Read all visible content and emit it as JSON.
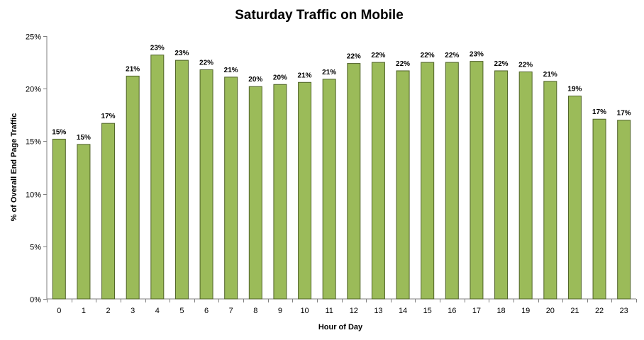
{
  "chart_data": {
    "type": "bar",
    "title": "Saturday Traffic on Mobile",
    "xlabel": "Hour of Day",
    "ylabel": "% of Overall End Page Traffic",
    "ylim": [
      0,
      25
    ],
    "yticks": [
      0,
      5,
      10,
      15,
      20,
      25
    ],
    "ytick_labels": [
      "0%",
      "5%",
      "10%",
      "15%",
      "20%",
      "25%"
    ],
    "categories": [
      "0",
      "1",
      "2",
      "3",
      "4",
      "5",
      "6",
      "7",
      "8",
      "9",
      "10",
      "11",
      "12",
      "13",
      "14",
      "15",
      "16",
      "17",
      "18",
      "19",
      "20",
      "21",
      "22",
      "23"
    ],
    "values": [
      15.2,
      14.7,
      16.7,
      21.2,
      23.2,
      22.7,
      21.8,
      21.1,
      20.2,
      20.4,
      20.6,
      20.9,
      22.4,
      22.5,
      21.7,
      22.5,
      22.5,
      22.6,
      21.7,
      21.6,
      20.7,
      19.3,
      17.1,
      17.0
    ],
    "data_labels": [
      "15%",
      "15%",
      "17%",
      "21%",
      "23%",
      "23%",
      "22%",
      "21%",
      "20%",
      "20%",
      "21%",
      "21%",
      "22%",
      "22%",
      "22%",
      "22%",
      "22%",
      "23%",
      "22%",
      "22%",
      "21%",
      "19%",
      "17%",
      "17%"
    ],
    "colors": {
      "bar_fill": "#9BBB59",
      "bar_stroke": "#4F6228",
      "axis": "#7F7F7F"
    },
    "grid": false,
    "legend": "none"
  }
}
